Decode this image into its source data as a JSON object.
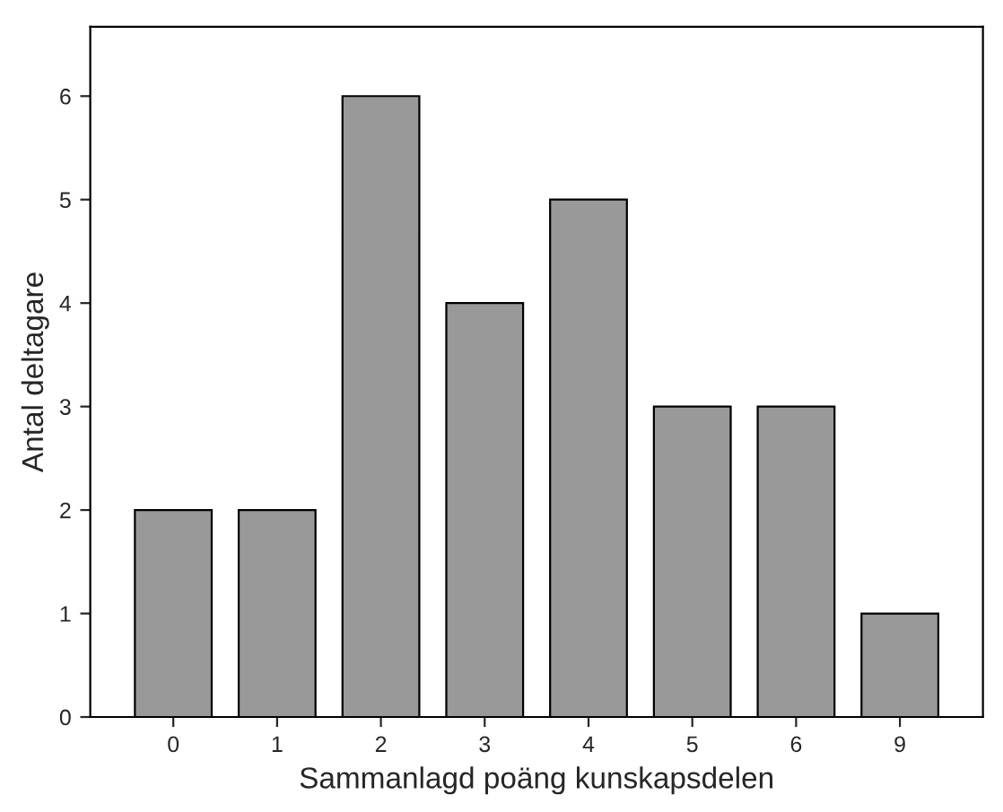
{
  "chart_data": {
    "type": "bar",
    "xlabel": "Sammanlagd poäng kunskapsdelen",
    "ylabel": "Antal deltagare",
    "categories": [
      "0",
      "1",
      "2",
      "3",
      "4",
      "5",
      "6",
      "9"
    ],
    "values": [
      2,
      2,
      6,
      4,
      5,
      3,
      3,
      1
    ],
    "color": "#999999",
    "ylim": [
      0,
      6.67
    ],
    "yticks": [
      0,
      1,
      2,
      3,
      4,
      5,
      6
    ],
    "grid": false,
    "legend": false
  }
}
